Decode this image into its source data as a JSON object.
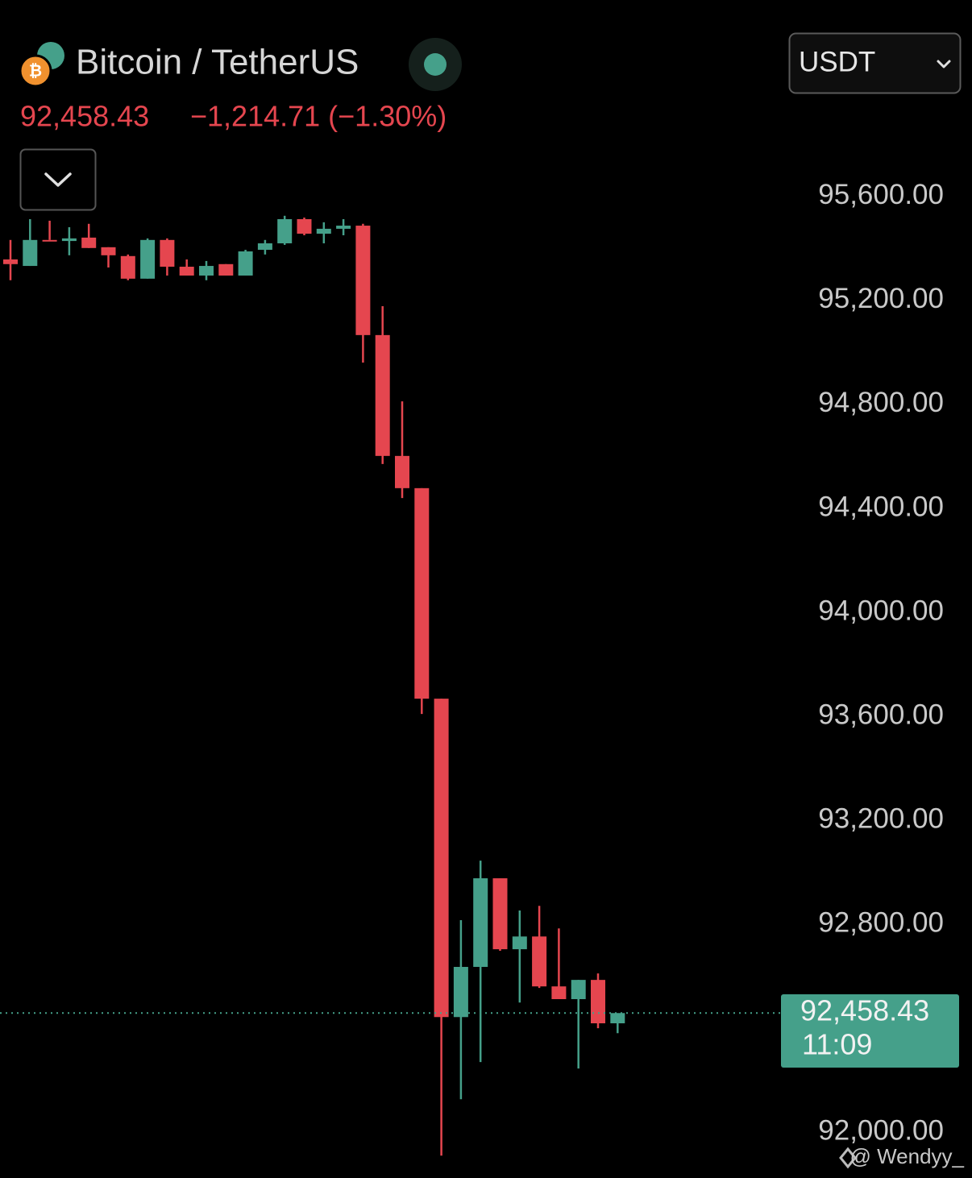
{
  "chart_data": {
    "type": "candlestick",
    "title": "Bitcoin / TetherUS",
    "change_text": "−1,214.71 (−1.30%)",
    "currency": "USDT",
    "countdown": "11:09",
    "watermark": "@ Wendyy_",
    "last_price": {
      "value": 92458.43,
      "label": "92,458.43"
    },
    "up_color": "#45a08a",
    "down_color": "#e5464f",
    "open": [
      95358,
      95333,
      95433,
      95429,
      95442,
      95405,
      95371,
      95284,
      95433,
      95330,
      95296,
      95340,
      95296,
      95395,
      95420,
      95513,
      95457,
      95476,
      95488,
      95067,
      94602,
      94478,
      93668,
      92443,
      92636,
      92977,
      92704,
      92753,
      92561,
      92512,
      92586,
      92419
    ],
    "high": [
      95433,
      95513,
      95507,
      95482,
      95495,
      95405,
      95377,
      95439,
      95439,
      95358,
      95352,
      95340,
      95395,
      95433,
      95526,
      95519,
      95501,
      95513,
      95495,
      95178,
      94812,
      94478,
      93668,
      92816,
      93045,
      92977,
      92853,
      92871,
      92784,
      92586,
      92611,
      92458
    ],
    "low": [
      95278,
      95333,
      95433,
      95374,
      95402,
      95327,
      95278,
      95284,
      95296,
      95296,
      95278,
      95296,
      95296,
      95377,
      95414,
      95451,
      95420,
      95451,
      94961,
      94571,
      94440,
      93609,
      91910,
      92127,
      92270,
      92698,
      92499,
      92555,
      92512,
      92245,
      92400,
      92381
    ],
    "close": [
      95340,
      95433,
      95429,
      95439,
      95402,
      95374,
      95284,
      95433,
      95330,
      95296,
      95333,
      95296,
      95389,
      95420,
      95513,
      95457,
      95476,
      95488,
      95067,
      94602,
      94478,
      93668,
      92443,
      92636,
      92977,
      92704,
      92753,
      92561,
      92512,
      92586,
      92419,
      92458.43
    ],
    "ylim": [
      91830,
      96350
    ],
    "yticks": [
      {
        "value": 95600,
        "label": "95,600.00"
      },
      {
        "value": 95200,
        "label": "95,200.00"
      },
      {
        "value": 94800,
        "label": "94,800.00"
      },
      {
        "value": 94400,
        "label": "94,400.00"
      },
      {
        "value": 94000,
        "label": "94,000.00"
      },
      {
        "value": 93600,
        "label": "93,600.00"
      },
      {
        "value": 93200,
        "label": "93,200.00"
      },
      {
        "value": 92800,
        "label": "92,800.00"
      },
      {
        "value": 92000,
        "label": "92,000.00"
      }
    ],
    "grid": false
  }
}
